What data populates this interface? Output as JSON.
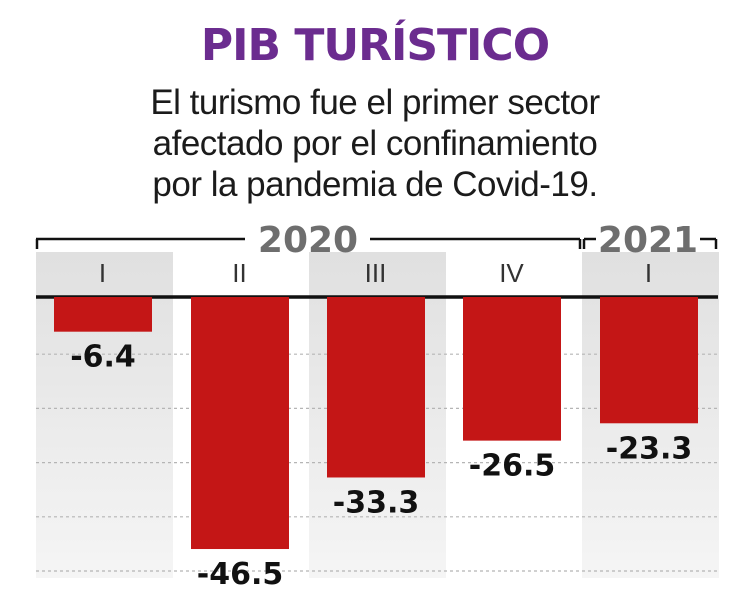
{
  "title": "PIB TURÍSTICO",
  "subtitle_lines": [
    "El turismo fue el primer sector",
    "afectado por el confinamiento",
    "por la pandemia de Covid-19."
  ],
  "colors": {
    "title": "#6b2c8f",
    "bar": "#c41616",
    "column_shade": "#e4e4e4",
    "year_text": "#6e6e6e"
  },
  "chart_data": {
    "type": "bar",
    "title": "PIB TURÍSTICO",
    "year_groups": [
      {
        "label": "2020",
        "quarters": [
          "I",
          "II",
          "III",
          "IV"
        ]
      },
      {
        "label": "2021",
        "quarters": [
          "I"
        ]
      }
    ],
    "categories": [
      "I",
      "II",
      "III",
      "IV",
      "I"
    ],
    "values": [
      -6.4,
      -46.5,
      -33.3,
      -26.5,
      -23.3
    ],
    "value_labels": [
      "-6.4",
      "-46.5",
      "-33.3",
      "-26.5",
      "-23.3"
    ],
    "ylim": [
      -50,
      0
    ],
    "grid": true
  }
}
